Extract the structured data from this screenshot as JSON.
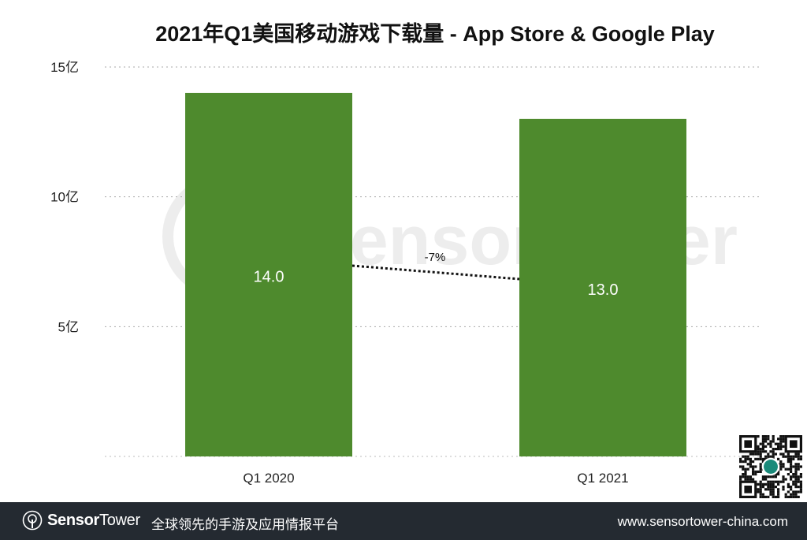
{
  "chart_data": {
    "type": "bar",
    "title": "2021年Q1美国移动游戏下载量 - App Store & Google Play",
    "categories": [
      "Q1 2020",
      "Q1 2021"
    ],
    "values": [
      14.0,
      13.0
    ],
    "data_labels": [
      "14.0",
      "13.0"
    ],
    "yticks": [
      {
        "value": 5,
        "label": "5亿"
      },
      {
        "value": 10,
        "label": "10亿"
      },
      {
        "value": 15,
        "label": "15亿"
      }
    ],
    "ylim": [
      0,
      15
    ],
    "xlabel": "",
    "ylabel": "",
    "grid": "horizontal dotted",
    "bar_color": "#4e8a2d",
    "annotation": {
      "text": "-7%",
      "type": "dotted connector between bars"
    }
  },
  "watermark": "SensorTower",
  "footer": {
    "brand_bold": "Sensor",
    "brand_light": "Tower",
    "slogan": "全球领先的手游及应用情报平台",
    "url": "www.sensortower-china.com",
    "background": "#242a31"
  }
}
